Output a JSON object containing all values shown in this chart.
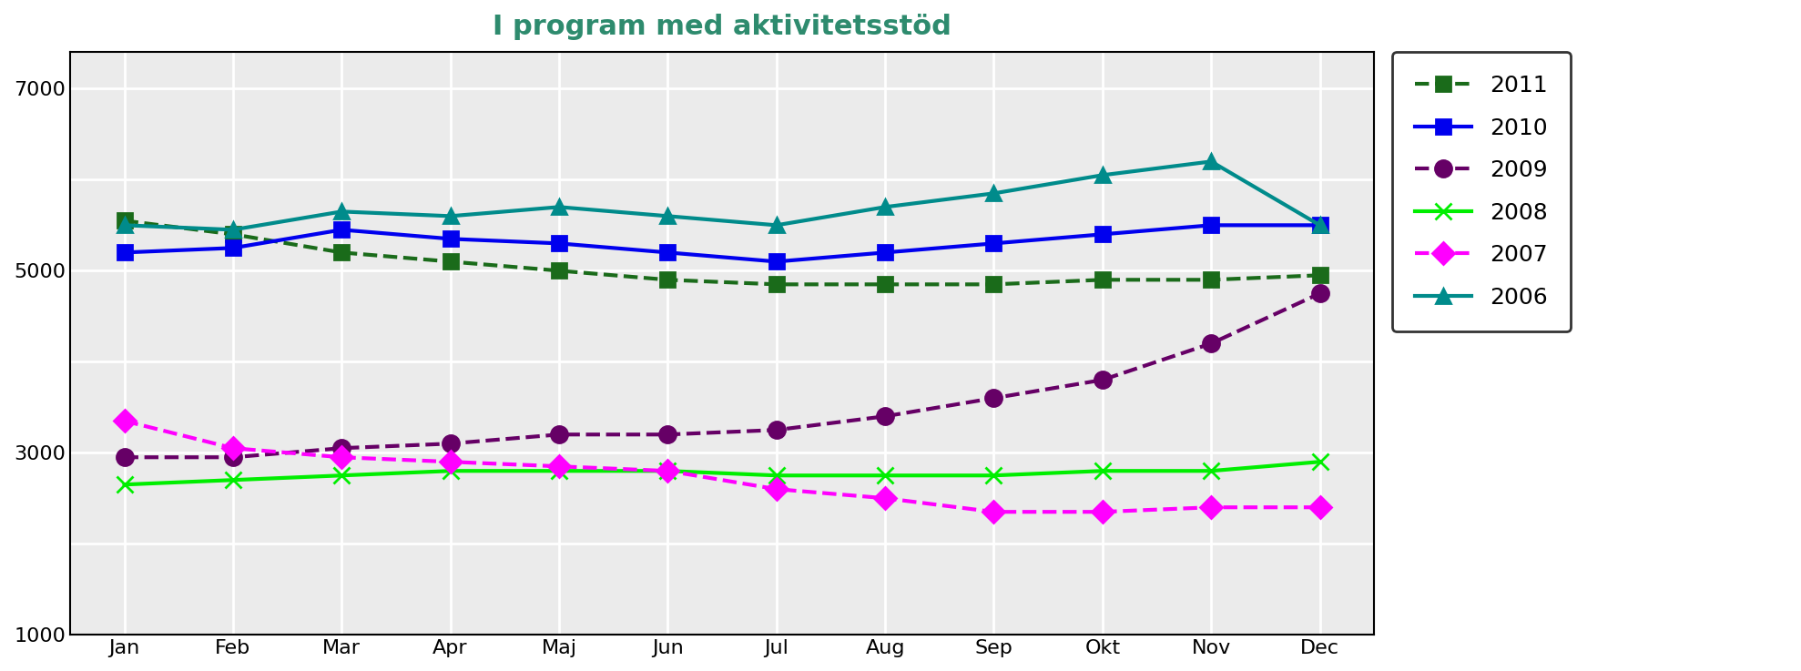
{
  "title": "I program med aktivitetsstöd",
  "title_color": "#2E8B6E",
  "months": [
    "Jan",
    "Feb",
    "Mar",
    "Apr",
    "Maj",
    "Jun",
    "Jul",
    "Aug",
    "Sep",
    "Okt",
    "Nov",
    "Dec"
  ],
  "series_order": [
    "2011",
    "2010",
    "2009",
    "2008",
    "2007",
    "2006"
  ],
  "series": {
    "2011": {
      "values": [
        5550,
        5400,
        5200,
        5100,
        5000,
        4900,
        4850,
        4850,
        4850,
        4900,
        4900,
        4950
      ],
      "color": "#1A6B1A",
      "linestyle": "--",
      "marker": "s",
      "linewidth": 3.0,
      "markersize": 11
    },
    "2010": {
      "values": [
        5200,
        5250,
        5450,
        5350,
        5300,
        5200,
        5100,
        5200,
        5300,
        5400,
        5500,
        5500
      ],
      "color": "#0000EE",
      "linestyle": "-",
      "marker": "s",
      "linewidth": 3.0,
      "markersize": 11
    },
    "2009": {
      "values": [
        2950,
        2950,
        3050,
        3100,
        3200,
        3200,
        3250,
        3400,
        3600,
        3800,
        4200,
        4750
      ],
      "color": "#660066",
      "linestyle": "--",
      "marker": "o",
      "linewidth": 3.0,
      "markersize": 13
    },
    "2008": {
      "values": [
        2650,
        2700,
        2750,
        2800,
        2800,
        2800,
        2750,
        2750,
        2750,
        2800,
        2800,
        2900
      ],
      "color": "#00EE00",
      "linestyle": "-",
      "marker": "x",
      "linewidth": 3.0,
      "markersize": 13
    },
    "2007": {
      "values": [
        3350,
        3050,
        2950,
        2900,
        2850,
        2800,
        2600,
        2500,
        2350,
        2350,
        2400,
        2400
      ],
      "color": "#FF00FF",
      "linestyle": "--",
      "marker": "D",
      "linewidth": 3.0,
      "markersize": 12
    },
    "2006": {
      "values": [
        5500,
        5450,
        5650,
        5600,
        5700,
        5600,
        5500,
        5700,
        5850,
        6050,
        6200,
        5500
      ],
      "color": "#008B8B",
      "linestyle": "-",
      "marker": "^",
      "linewidth": 3.0,
      "markersize": 12
    }
  },
  "ylim": [
    1000,
    7400
  ],
  "yticks": [
    1000,
    2000,
    3000,
    4000,
    5000,
    6000,
    7000
  ],
  "ytick_labels": [
    "",
    "",
    "3000",
    "",
    "5000",
    "",
    "7000"
  ],
  "background_color": "#EBEBEB",
  "grid_color": "#FFFFFF",
  "legend_fontsize": 18,
  "tick_fontsize": 16
}
